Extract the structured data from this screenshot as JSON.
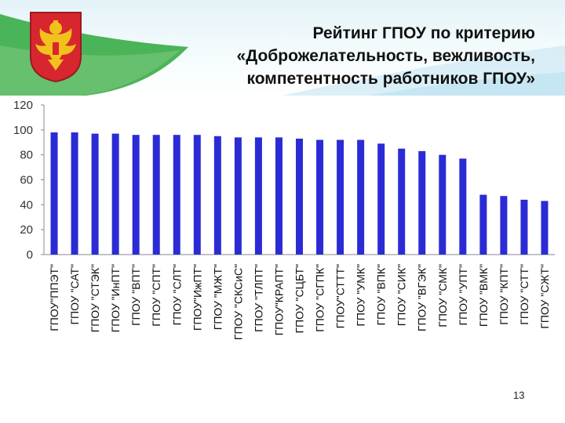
{
  "title_lines": [
    "Рейтинг ГПОУ по критерию",
    "«Доброжелательность, вежливость,",
    "компетентность работников ГПОУ»"
  ],
  "page_number": "13",
  "colors": {
    "bar": "#2b2bd6",
    "title": "#111111",
    "header_green": "#3cae4a",
    "emblem_red": "#d8262e",
    "emblem_gold": "#f1c21b"
  },
  "chart_data": {
    "type": "bar",
    "title": "",
    "xlabel": "",
    "ylabel": "",
    "ylim": [
      0,
      120
    ],
    "yticks": [
      0,
      20,
      40,
      60,
      80,
      100,
      120
    ],
    "grid": false,
    "legend": "none",
    "categories": [
      "ГПОУ\"ППЭТ\"",
      "ГПОУ \"САТ\"",
      "ГПОУ \"СТЭК\"",
      "ГПОУ \"ИнПТ\"",
      "ГПОУ \"ВПТ\"",
      "ГПОУ \"СПТ\"",
      "ГПОУ \"СЛТ\"",
      "ГПОУ\"ИжПТ\"",
      "ГПОУ \"МЖТ\"",
      "ГПОУ \"СКСиС\"",
      "ГПОУ \"ТЛПТ\"",
      "ГПОУ\"КРАПТ\"",
      "ГПОУ \"СЦБТ\"",
      "ГПОУ \"СГПК\"",
      "ГПОУ\"СТТТ\"",
      "ГПОУ \"УМК\"",
      "ГПОУ \"ВПК\"",
      "ГПОУ \"СИК\"",
      "ГПОУ \"ВГЭК\"",
      "ГПОУ \"СМК\"",
      "ГПОУ \"УПТ\"",
      "ГПОУ \"ВМК\"",
      "ГПОУ \"КПТ\"",
      "ГПОУ \"СТТ\"",
      "ГПОУ \"СЖТ\""
    ],
    "values": [
      98,
      98,
      97,
      97,
      96,
      96,
      96,
      96,
      95,
      94,
      94,
      94,
      93,
      92,
      92,
      92,
      89,
      85,
      83,
      80,
      77,
      48,
      47,
      44,
      43
    ]
  }
}
